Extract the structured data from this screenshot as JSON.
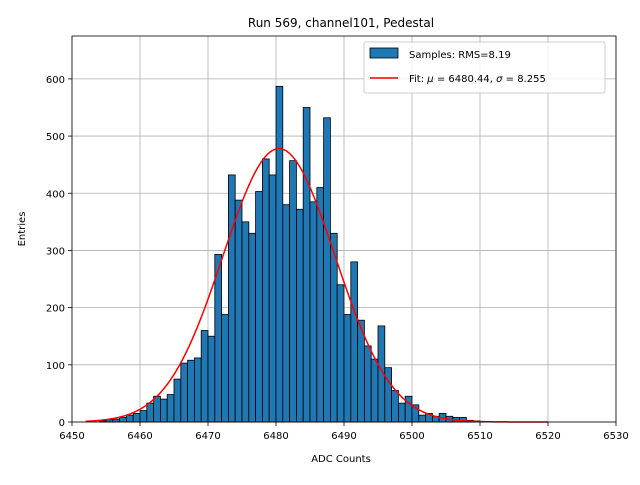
{
  "chart_data": {
    "type": "bar",
    "title": "Run 569, channel101, Pedestal",
    "xlabel": "ADC Counts",
    "ylabel": "Entries",
    "xlim": [
      6450,
      6530
    ],
    "ylim": [
      0,
      675
    ],
    "xticks": [
      6450,
      6460,
      6470,
      6480,
      6490,
      6500,
      6510,
      6520,
      6530
    ],
    "yticks": [
      0,
      100,
      200,
      300,
      400,
      500,
      600
    ],
    "grid": true,
    "legend_position": "top-right",
    "colors": {
      "bar_fill": "#1f77b4",
      "bar_edge": "#000000",
      "fit_line": "#ff0000",
      "grid": "#b0b0b0"
    },
    "histogram": {
      "name": "Samples: RMS=8.19",
      "bin_start": 6454,
      "bin_width": 1,
      "counts": [
        2,
        4,
        5,
        8,
        12,
        15,
        20,
        33,
        45,
        40,
        48,
        75,
        103,
        108,
        112,
        160,
        150,
        293,
        188,
        432,
        388,
        350,
        330,
        403,
        460,
        432,
        587,
        380,
        457,
        372,
        550,
        385,
        410,
        532,
        330,
        240,
        188,
        280,
        178,
        133,
        110,
        168,
        95,
        55,
        33,
        45,
        30,
        12,
        15,
        10,
        15,
        10,
        8,
        8,
        3,
        2
      ]
    },
    "fit": {
      "name_prefix": "Fit: ",
      "name_mu": "μ",
      "name_middle": " = 6480.44, ",
      "name_sigma": "σ",
      "name_suffix": " = 8.255",
      "mu": 6480.44,
      "sigma": 8.255,
      "amplitude": 478,
      "x_range": [
        6452,
        6520
      ]
    }
  }
}
